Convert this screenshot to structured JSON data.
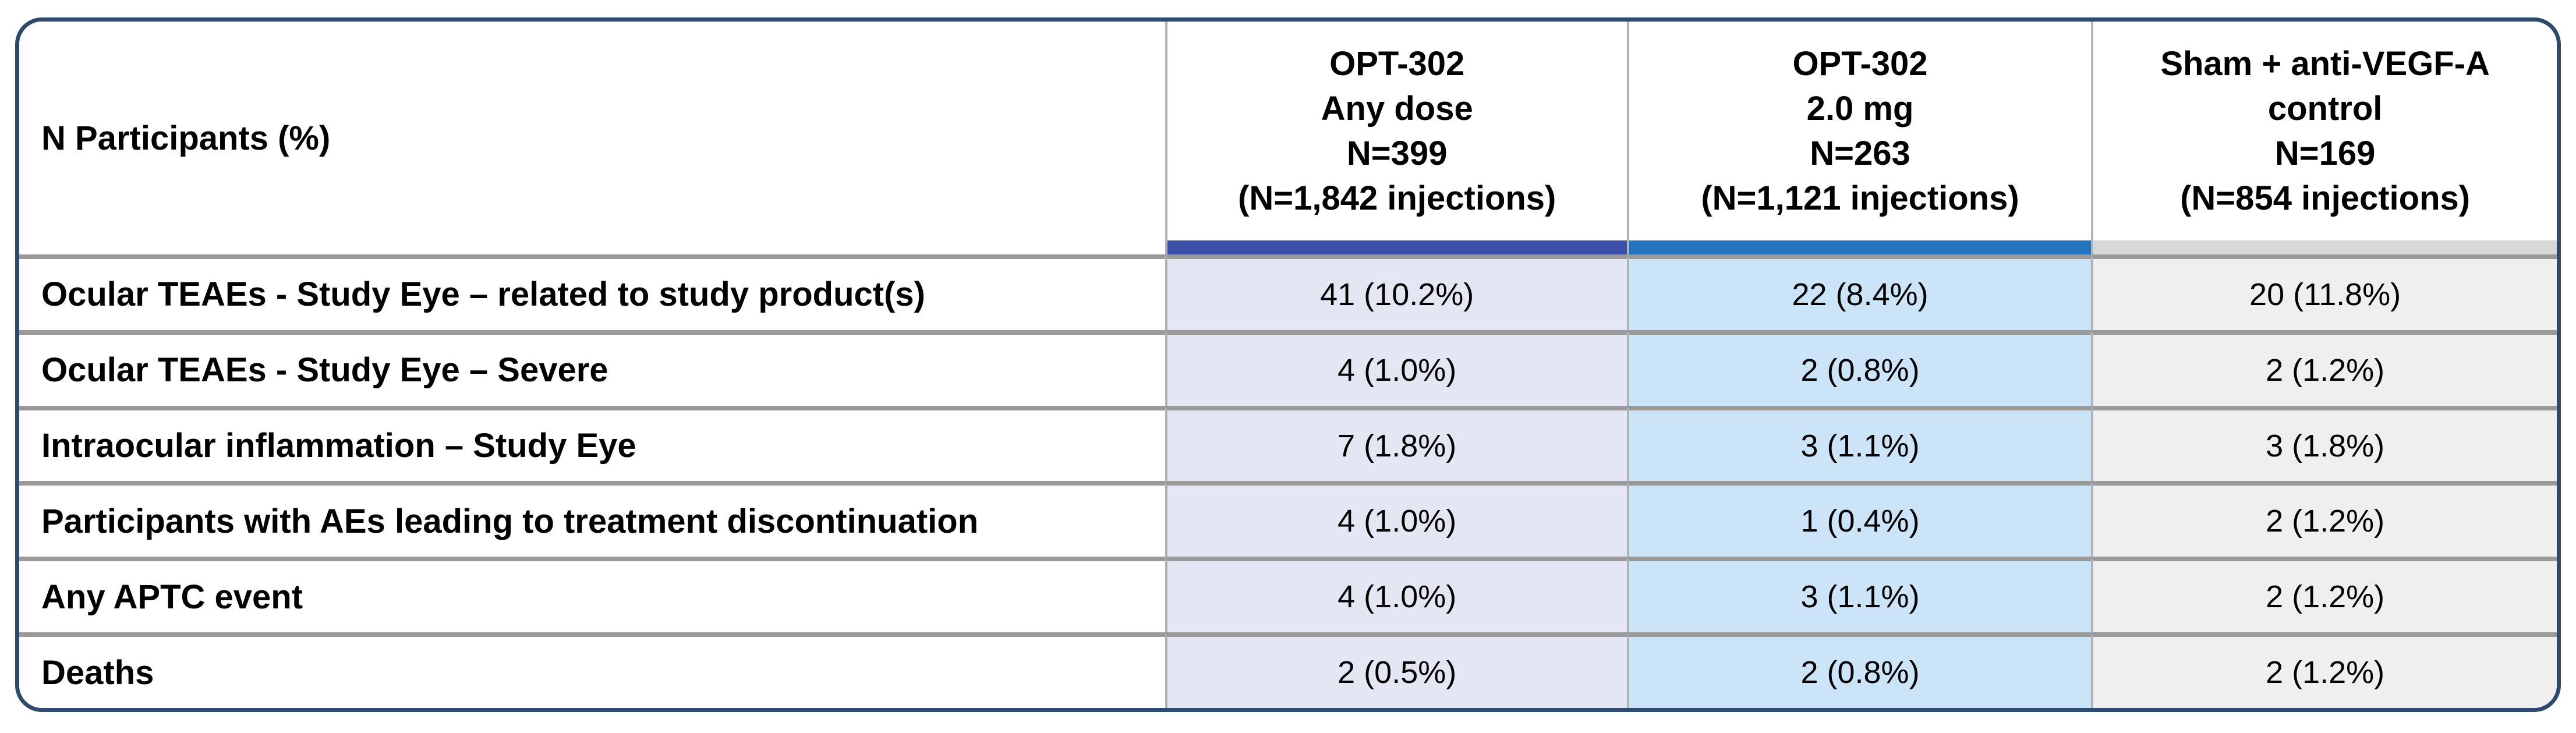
{
  "table": {
    "corner_header": "N Participants (%)",
    "columns": [
      {
        "header": "OPT-302\nAny dose\nN=399\n(N=1,842 injections)",
        "accent_color": "#3B51A9",
        "body_color": "#E4E7F3"
      },
      {
        "header": "OPT-302\n2.0 mg\nN=263\n(N=1,121 injections)",
        "accent_color": "#2274BE",
        "body_color": "#CCE4F7"
      },
      {
        "header": "Sham + anti-VEGF-A\ncontrol\nN=169\n(N=854 injections)",
        "accent_color": "#D8D8D6",
        "body_color": "#EFEFEE"
      }
    ],
    "rows": [
      {
        "label": "Ocular TEAEs - Study Eye – related to study product(s)",
        "values": [
          "41 (10.2%)",
          "22 (8.4%)",
          "20 (11.8%)"
        ]
      },
      {
        "label": "Ocular TEAEs - Study Eye – Severe",
        "values": [
          "4 (1.0%)",
          "2 (0.8%)",
          "2 (1.2%)"
        ]
      },
      {
        "label": "Intraocular inflammation – Study Eye",
        "values": [
          "7 (1.8%)",
          "3 (1.1%)",
          "3 (1.8%)"
        ]
      },
      {
        "label": "Participants with AEs leading to treatment discontinuation",
        "values": [
          "4 (1.0%)",
          "1 (0.4%)",
          "2 (1.2%)"
        ]
      },
      {
        "label": "Any APTC event",
        "values": [
          "4 (1.0%)",
          "3 (1.1%)",
          "2 (1.2%)"
        ]
      },
      {
        "label": "Deaths",
        "values": [
          "2 (0.5%)",
          "2 (0.8%)",
          "2 (1.2%)"
        ]
      }
    ],
    "colors": {
      "outer_border": "#2E4A6E",
      "row_separator": "#9A9A9A",
      "column_separator": "#AFB3BA",
      "header_background": "#FFFFFF",
      "text": "#000000"
    }
  }
}
